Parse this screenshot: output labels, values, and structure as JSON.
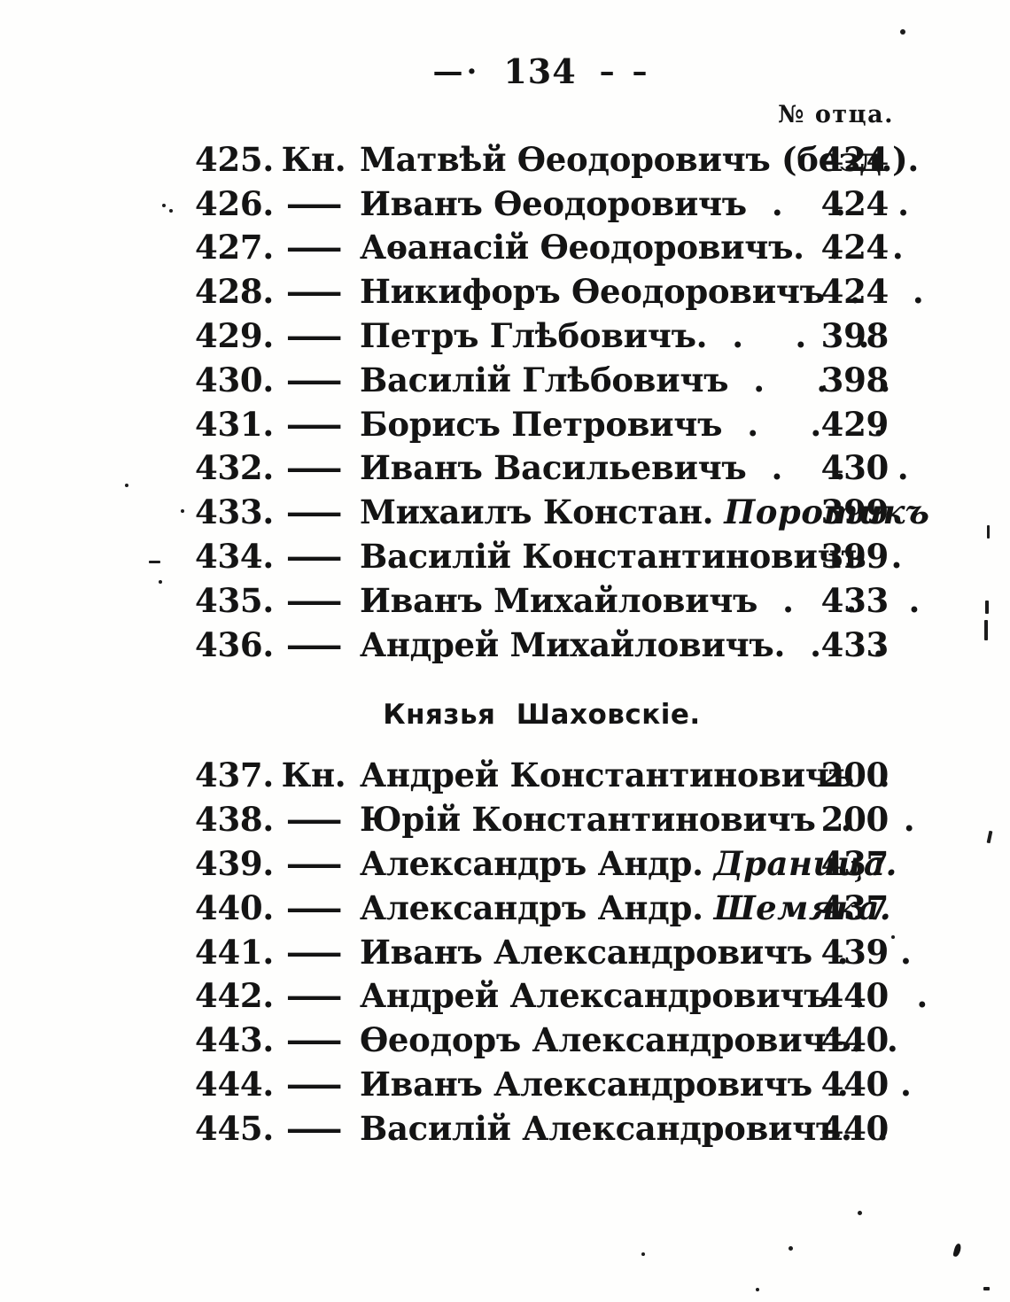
{
  "page": {
    "header": {
      "decor_left": "—·",
      "number": "134",
      "decor_right": "– –"
    },
    "column_header": "№ отца."
  },
  "sections": [
    {
      "title": "",
      "rows": [
        {
          "num": "425.",
          "prefix": "Кн.",
          "name": "Матвѣй Ѳеодоровичъ (безд.).",
          "nickname": "",
          "dots": "",
          "father": "424"
        },
        {
          "num": "426.",
          "prefix": "—",
          "name": "Иванъ Ѳеодоровичъ",
          "nickname": "",
          "dots": ". . .",
          "father": "424"
        },
        {
          "num": "427.",
          "prefix": "—",
          "name": "Аѳанасій Ѳеодоровичъ.",
          "nickname": "",
          "dots": ". .",
          "father": "424"
        },
        {
          "num": "428.",
          "prefix": "—",
          "name": "Никифоръ Ѳеодоровичъ",
          "nickname": "",
          "dots": ". .",
          "father": "424"
        },
        {
          "num": "429.",
          "prefix": "—",
          "name": "Петръ Глѣбовичъ.",
          "nickname": "",
          "dots": ". . .",
          "father": "398"
        },
        {
          "num": "430.",
          "prefix": "—",
          "name": "Василій Глѣбовичъ",
          "nickname": "",
          "dots": ". . .",
          "father": "398"
        },
        {
          "num": "431.",
          "prefix": "—",
          "name": "Борисъ Петровичъ",
          "nickname": "",
          "dots": ". . .",
          "father": "429"
        },
        {
          "num": "432.",
          "prefix": "—",
          "name": "Иванъ Васильевичъ",
          "nickname": "",
          "dots": ". . .",
          "father": "430"
        },
        {
          "num": "433.",
          "prefix": "—",
          "name": "Михаилъ Констан.",
          "nickname": "Поротикъ",
          "dots": "",
          "father": "399"
        },
        {
          "num": "434.",
          "prefix": "—",
          "name": "Василій Константиновичъ",
          "nickname": "",
          "dots": ".",
          "father": "399"
        },
        {
          "num": "435.",
          "prefix": "—",
          "name": "Иванъ Михайловичъ",
          "nickname": "",
          "dots": ". . .",
          "father": "433"
        },
        {
          "num": "436.",
          "prefix": "—",
          "name": "Андрей Михайловичъ.",
          "nickname": "",
          "dots": ". .",
          "father": "433"
        }
      ]
    },
    {
      "title": "Князья Шаховскіе.",
      "rows": [
        {
          "num": "437.",
          "prefix": "Кн.",
          "name": "Андрей Константиновичъ",
          "nickname": "",
          "dots": ".",
          "father": "200"
        },
        {
          "num": "438.",
          "prefix": "—",
          "name": "Юрій Константиновичъ",
          "nickname": "",
          "dots": ". .",
          "father": "200"
        },
        {
          "num": "439.",
          "prefix": "—",
          "name": "Александръ Андр.",
          "nickname": "Драница.",
          "dots": "",
          "father": "437"
        },
        {
          "num": "440.",
          "prefix": "—",
          "name": "Александръ Андр.",
          "nickname": "Шемяка.",
          "dots": "",
          "father": "437"
        },
        {
          "num": "441.",
          "prefix": "—",
          "name": "Иванъ Александровичъ",
          "nickname": "",
          "dots": ". .",
          "father": "439"
        },
        {
          "num": "442.",
          "prefix": "—",
          "name": "Андрей Александровичъ",
          "nickname": "",
          "dots": ". .",
          "father": "440"
        },
        {
          "num": "443.",
          "prefix": "—",
          "name": "Ѳеодоръ Александровичъ.",
          "nickname": "",
          "dots": ".",
          "father": "440"
        },
        {
          "num": "444.",
          "prefix": "—",
          "name": "Иванъ Александровичъ",
          "nickname": "",
          "dots": ". .",
          "father": "440"
        },
        {
          "num": "445.",
          "prefix": "—",
          "name": "Василій Александровичъ.",
          "nickname": "",
          "dots": ".",
          "father": "440"
        }
      ]
    }
  ]
}
